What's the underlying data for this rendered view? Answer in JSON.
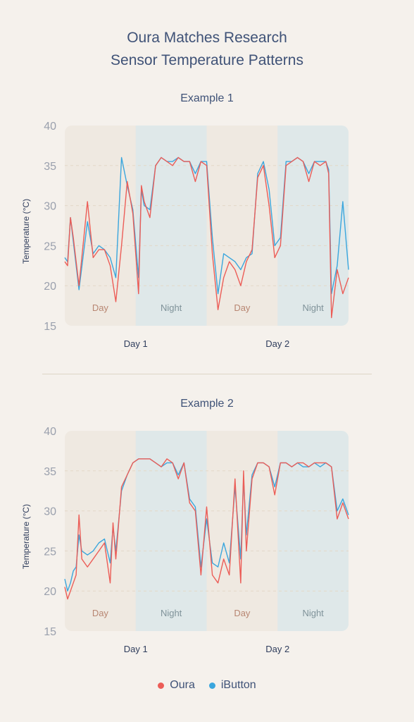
{
  "title": {
    "line1": "Oura Matches Research",
    "line2": "Sensor Temperature Patterns"
  },
  "colors": {
    "oura": "#ec5d57",
    "ibutton": "#3aa6dd",
    "day_band": "#efe9e1",
    "night_band": "#dfe8e9",
    "day_label": "#b88672",
    "night_label": "#7f9299",
    "gridline": "#e3d8c8",
    "axis_text": "#9aa0ad"
  },
  "legend": {
    "oura_label": "Oura",
    "ibutton_label": "iButton"
  },
  "chart_data": [
    {
      "type": "line",
      "title": "Example 1",
      "ylabel": "Temperature (°C)",
      "xlabel": "",
      "ylim": [
        15,
        40
      ],
      "yticks": [
        15,
        20,
        25,
        30,
        35,
        40
      ],
      "x_tick_labels": [
        "Day 1",
        "Day 2"
      ],
      "bands": [
        "Day",
        "Night",
        "Day",
        "Night"
      ],
      "grid": "dashed at 20, 25, 30, 35",
      "series": [
        {
          "name": "Oura",
          "x": [
            0,
            0.01,
            0.02,
            0.03,
            0.05,
            0.08,
            0.1,
            0.12,
            0.14,
            0.16,
            0.18,
            0.2,
            0.22,
            0.24,
            0.26,
            0.27,
            0.28,
            0.3,
            0.32,
            0.33,
            0.34,
            0.36,
            0.38,
            0.4,
            0.42,
            0.44,
            0.46,
            0.48,
            0.5,
            0.52,
            0.54,
            0.56,
            0.58,
            0.6,
            0.62,
            0.64,
            0.66,
            0.68,
            0.7,
            0.72,
            0.74,
            0.76,
            0.78,
            0.8,
            0.82,
            0.84,
            0.86,
            0.88,
            0.9,
            0.92,
            0.93,
            0.94,
            0.96,
            0.98,
            1.0
          ],
          "values": [
            23,
            22.5,
            28.5,
            26,
            20,
            30.5,
            23.5,
            24.5,
            24.5,
            22.5,
            18,
            25,
            33,
            29,
            19,
            32.5,
            30.5,
            28.5,
            35,
            35.5,
            36,
            35.5,
            35,
            36,
            35.5,
            35.5,
            33,
            35.5,
            35,
            24,
            17,
            21,
            23,
            22,
            20,
            23,
            24.5,
            33.5,
            35,
            30,
            23.5,
            25,
            35,
            35.5,
            36,
            35.5,
            33,
            35.5,
            35,
            35.5,
            34,
            16,
            22,
            19,
            21
          ]
        },
        {
          "name": "iButton",
          "x": [
            0,
            0.01,
            0.02,
            0.03,
            0.05,
            0.08,
            0.1,
            0.12,
            0.14,
            0.16,
            0.18,
            0.2,
            0.22,
            0.24,
            0.26,
            0.27,
            0.28,
            0.3,
            0.32,
            0.33,
            0.34,
            0.36,
            0.38,
            0.4,
            0.42,
            0.44,
            0.46,
            0.48,
            0.5,
            0.52,
            0.54,
            0.56,
            0.58,
            0.6,
            0.62,
            0.64,
            0.66,
            0.68,
            0.7,
            0.72,
            0.74,
            0.76,
            0.78,
            0.8,
            0.82,
            0.84,
            0.86,
            0.88,
            0.9,
            0.92,
            0.93,
            0.94,
            0.96,
            0.98,
            1.0
          ],
          "values": [
            23.5,
            23,
            28.5,
            25.5,
            19.5,
            28,
            24,
            25,
            24.5,
            23.5,
            21,
            36,
            32.5,
            29.5,
            21,
            32,
            30,
            29.5,
            35,
            35.5,
            36,
            35.5,
            35.5,
            36,
            35.5,
            35.5,
            34,
            35.5,
            35.5,
            26,
            19,
            24,
            23.5,
            23,
            22,
            23.5,
            24,
            34,
            35.5,
            32,
            25,
            26,
            35.5,
            35.5,
            36,
            35.5,
            34,
            35.5,
            35.5,
            35.5,
            34.5,
            19,
            22.5,
            30.5,
            22
          ]
        }
      ]
    },
    {
      "type": "line",
      "title": "Example 2",
      "ylabel": "Temperature (°C)",
      "xlabel": "",
      "ylim": [
        15,
        40
      ],
      "yticks": [
        15,
        20,
        25,
        30,
        35,
        40
      ],
      "x_tick_labels": [
        "Day 1",
        "Day 2"
      ],
      "bands": [
        "Day",
        "Night",
        "Day",
        "Night"
      ],
      "grid": "dashed at 20, 25, 30, 35",
      "series": [
        {
          "name": "Oura",
          "x": [
            0,
            0.01,
            0.02,
            0.03,
            0.04,
            0.05,
            0.06,
            0.08,
            0.1,
            0.12,
            0.14,
            0.16,
            0.17,
            0.18,
            0.2,
            0.22,
            0.24,
            0.26,
            0.28,
            0.3,
            0.32,
            0.34,
            0.36,
            0.38,
            0.4,
            0.42,
            0.44,
            0.46,
            0.48,
            0.5,
            0.52,
            0.54,
            0.56,
            0.58,
            0.6,
            0.62,
            0.63,
            0.64,
            0.66,
            0.68,
            0.7,
            0.72,
            0.74,
            0.76,
            0.78,
            0.8,
            0.82,
            0.84,
            0.86,
            0.88,
            0.9,
            0.92,
            0.94,
            0.96,
            0.98,
            1.0
          ],
          "values": [
            20.5,
            19,
            20,
            21,
            22,
            29.5,
            24,
            23,
            24,
            25,
            26,
            21,
            28.5,
            24,
            33,
            34.5,
            36,
            36.5,
            36.5,
            36.5,
            36,
            35.5,
            36.5,
            36,
            34,
            36,
            31,
            30,
            22,
            30.5,
            22,
            21,
            24,
            22,
            34,
            21,
            35,
            25,
            34,
            36,
            36,
            35.5,
            32,
            36,
            36,
            35.5,
            36,
            36,
            35.5,
            36,
            36,
            36,
            35.5,
            29,
            31,
            29
          ]
        },
        {
          "name": "iButton",
          "x": [
            0,
            0.01,
            0.02,
            0.03,
            0.04,
            0.05,
            0.06,
            0.08,
            0.1,
            0.12,
            0.14,
            0.16,
            0.17,
            0.18,
            0.2,
            0.22,
            0.24,
            0.26,
            0.28,
            0.3,
            0.32,
            0.34,
            0.36,
            0.38,
            0.4,
            0.42,
            0.44,
            0.46,
            0.48,
            0.5,
            0.52,
            0.54,
            0.56,
            0.58,
            0.6,
            0.62,
            0.63,
            0.64,
            0.66,
            0.68,
            0.7,
            0.72,
            0.74,
            0.76,
            0.78,
            0.8,
            0.82,
            0.84,
            0.86,
            0.88,
            0.9,
            0.92,
            0.94,
            0.96,
            0.98,
            1.0
          ],
          "values": [
            21.5,
            20,
            21,
            22.5,
            23,
            27,
            25,
            24.5,
            25,
            26,
            26.5,
            23.5,
            28,
            25,
            32.5,
            34.5,
            36,
            36.5,
            36.5,
            36.5,
            36,
            35.5,
            36,
            36,
            34.5,
            36,
            31.5,
            30.5,
            23,
            29,
            23.5,
            23,
            26,
            23.5,
            33,
            24,
            34,
            27,
            34.5,
            36,
            36,
            35.5,
            33,
            36,
            36,
            35.5,
            36,
            35.5,
            35.5,
            36,
            35.5,
            36,
            35.5,
            30,
            31.5,
            29.5
          ]
        }
      ]
    }
  ]
}
